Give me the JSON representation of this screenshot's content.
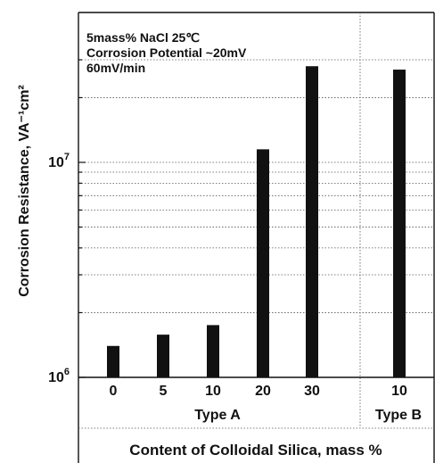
{
  "chart_data": {
    "type": "bar",
    "title": "",
    "ylabel": "Corrosion Resistance, VA⁻¹cm²",
    "xlabel": "Content of Colloidal Silica, mass %",
    "yscale": "log",
    "ylim": [
      1000000,
      35000000
    ],
    "ytick_labels": [
      {
        "value": 1000000,
        "base": "10",
        "exp": "6"
      },
      {
        "value": 10000000,
        "base": "10",
        "exp": "7"
      }
    ],
    "annotations": [
      "5mass% NaCl 25℃",
      "Corrosion Potential ~20mV",
      "60mV/min"
    ],
    "groups": [
      {
        "label": "Type A",
        "categories": [
          "0",
          "5",
          "10",
          "20",
          "30"
        ]
      },
      {
        "label": "Type B",
        "categories": [
          "10"
        ]
      }
    ],
    "values": [
      1400000,
      1580000,
      1750000,
      11500000,
      28000000,
      27000000
    ],
    "bar_color": "#111111",
    "grid": "horizontal-dotted"
  }
}
